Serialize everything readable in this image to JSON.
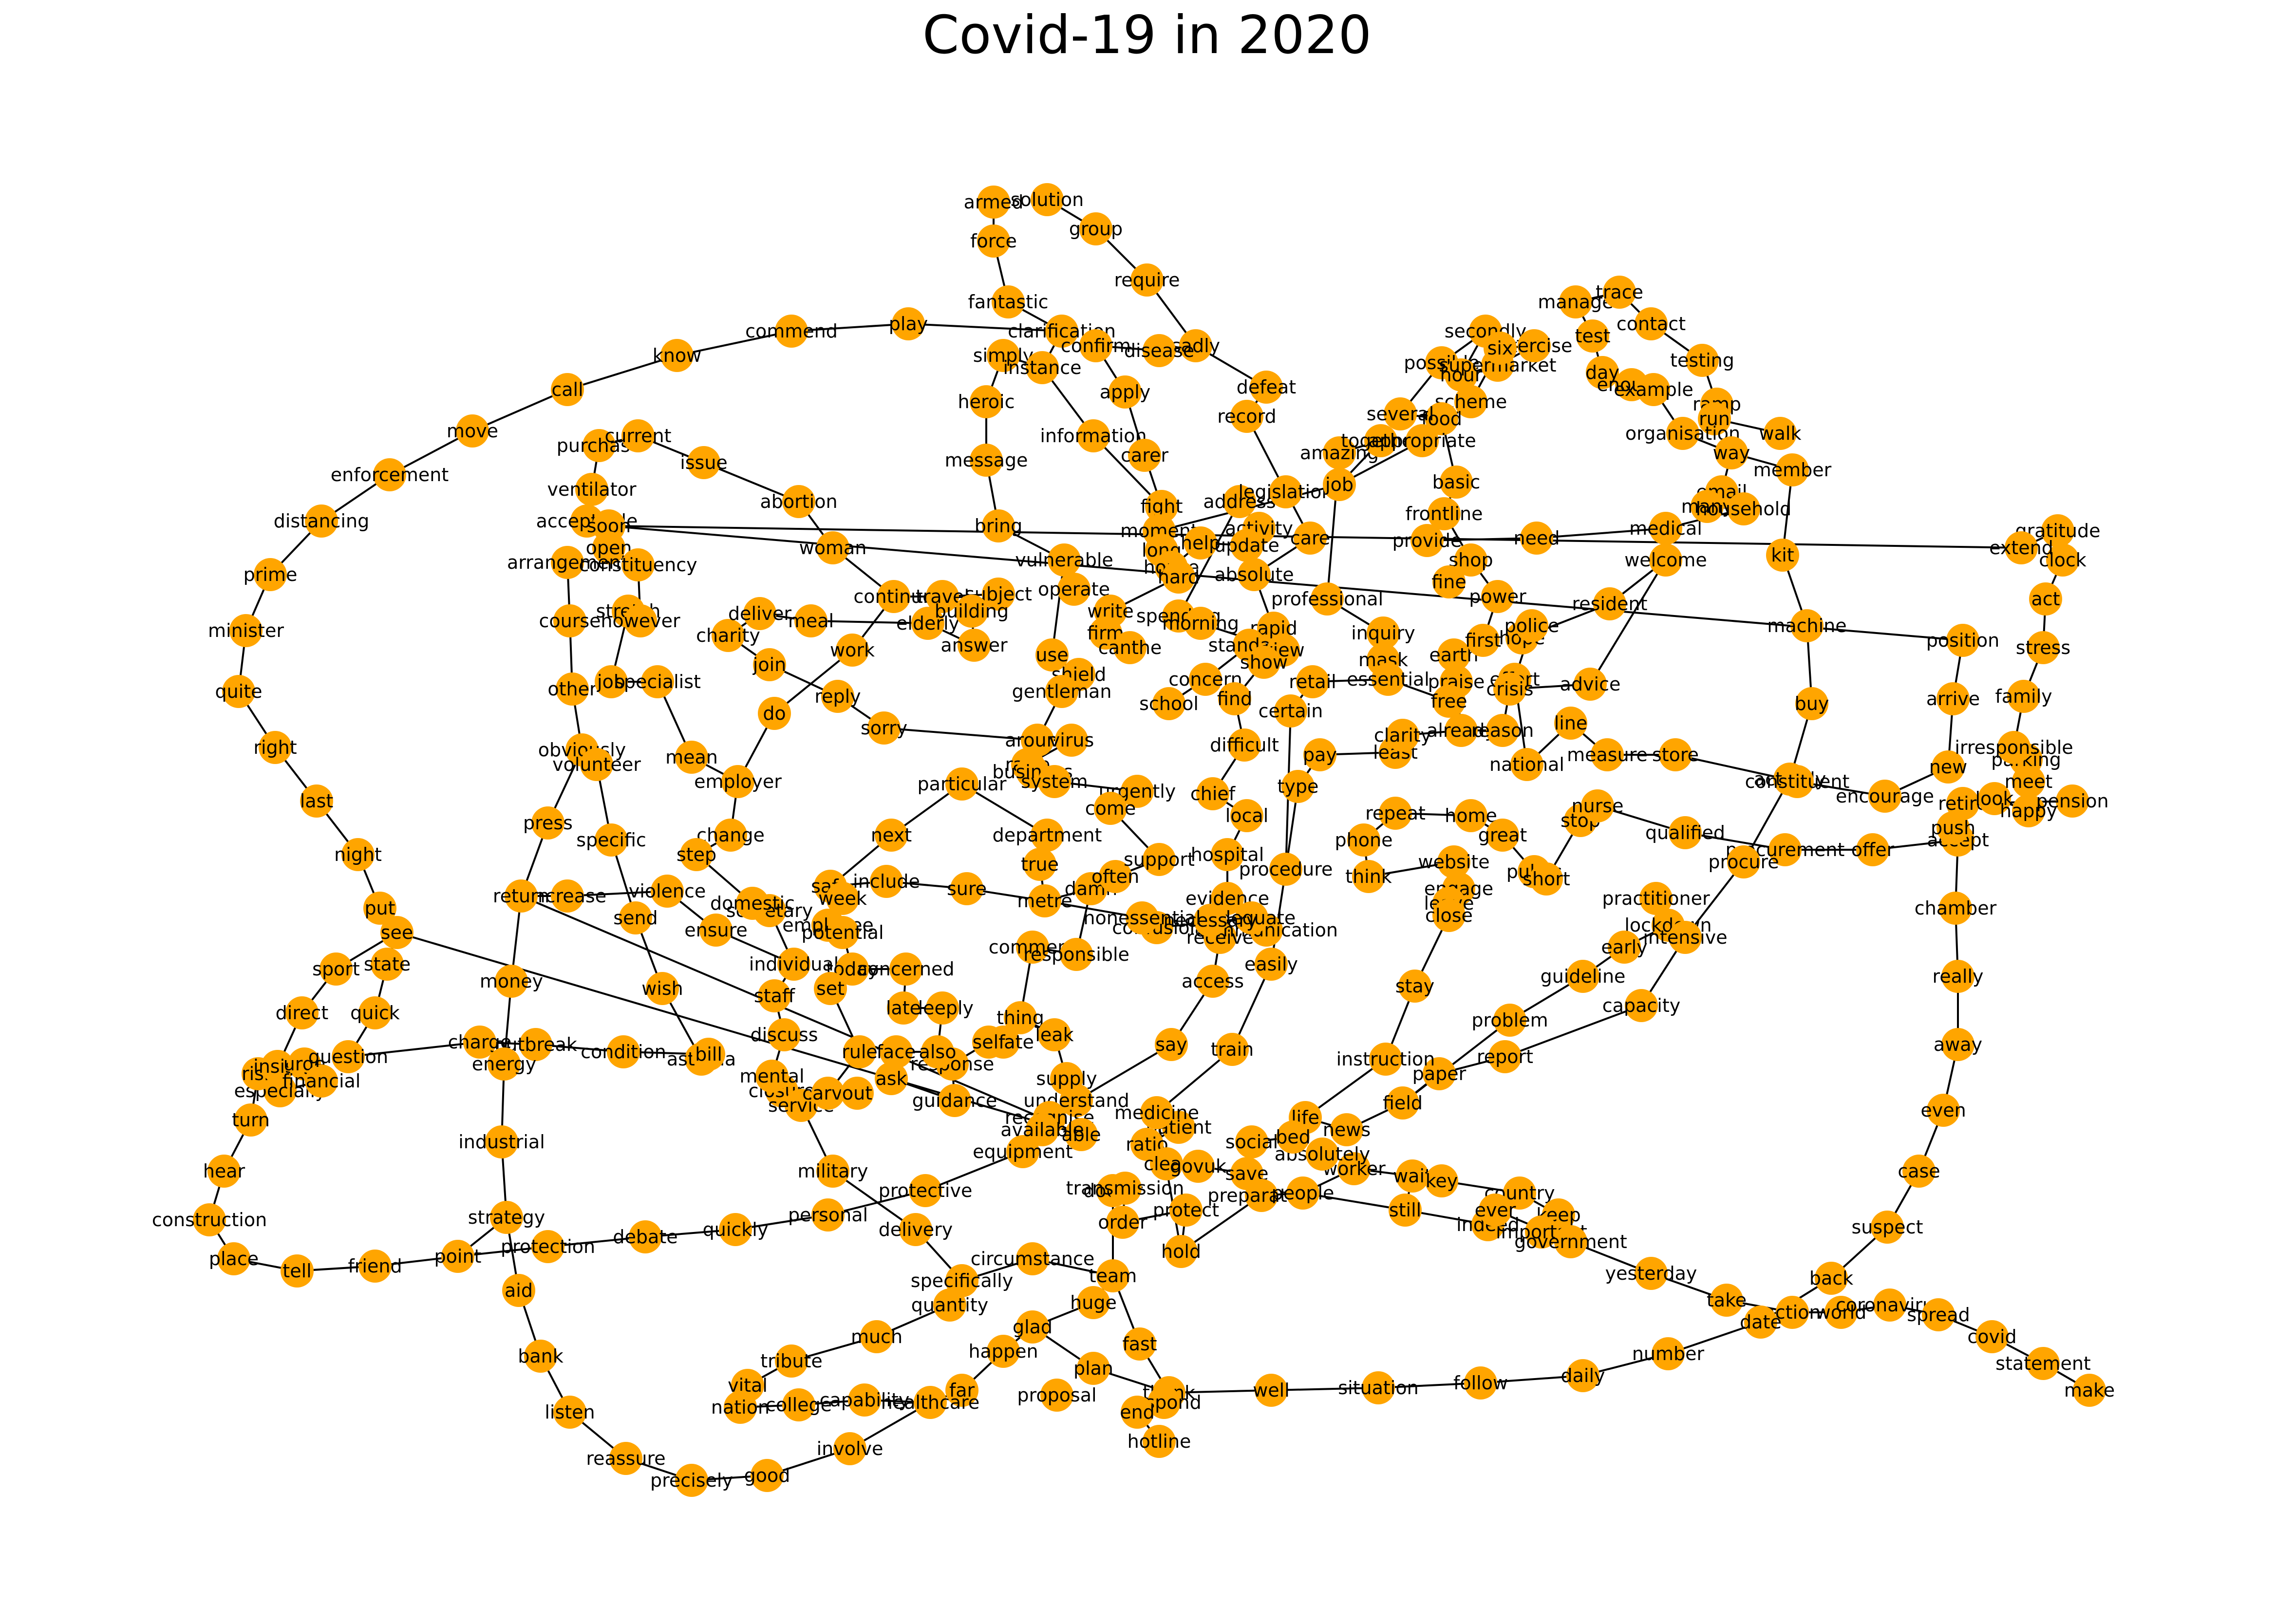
{
  "title": "Covid-19 in 2020",
  "colors": {
    "node": "#ffa500",
    "edge": "#000000",
    "label": "#000000"
  },
  "nodes": [
    "armed",
    "solution",
    "force",
    "group",
    "require",
    "fantastic",
    "clarification",
    "confirm",
    "sadly",
    "simply",
    "instance",
    "disease",
    "apply",
    "defeat",
    "heroic",
    "information",
    "record",
    "carer",
    "message",
    "fight",
    "moment",
    "address",
    "activity",
    "legislation",
    "bring",
    "long",
    "house",
    "help",
    "update",
    "job",
    "care",
    "absolute",
    "vulnerable",
    "operate",
    "hard",
    "write",
    "firm",
    "canthe",
    "spending",
    "morning",
    "professional",
    "rapid",
    "standard",
    "view",
    "show",
    "inquiry",
    "mask",
    "retail",
    "essential",
    "earth",
    "praise",
    "free",
    "concern",
    "school",
    "find",
    "certain",
    "pay",
    "least",
    "clarity",
    "already",
    "reason",
    "difficult",
    "type",
    "chief",
    "local",
    "urgently",
    "come",
    "department",
    "true",
    "metre",
    "damn",
    "often",
    "support",
    "evidence",
    "hospital",
    "procedure",
    "phone",
    "repeat",
    "think",
    "website",
    "engage",
    "leave",
    "close",
    "response",
    "guidance",
    "understand",
    "recognise",
    "supply",
    "equipment",
    "able",
    "vital",
    "order",
    "social",
    "patient",
    "ratio",
    "clear",
    "govuk",
    "save",
    "preparation",
    "people",
    "worker",
    "absolutely",
    "life",
    "bed",
    "news",
    "field",
    "wait",
    "key",
    "country",
    "keep",
    "indeed",
    "important",
    "government",
    "ever",
    "still",
    "yesterday",
    "take",
    "back",
    "action",
    "world",
    "coronavirus",
    "spread",
    "covid",
    "statement",
    "make",
    "date",
    "number",
    "daily",
    "follow",
    "situation",
    "well",
    "thank",
    "respond",
    "end",
    "hotline",
    "proposal",
    "far",
    "healthcare",
    "capability",
    "college",
    "nation",
    "tribute",
    "much",
    "quantity",
    "specifically",
    "circumstance",
    "glad",
    "happen",
    "plan",
    "team",
    "huge",
    "fast",
    "hold",
    "protect",
    "doctor",
    "transmission",
    "medicine",
    "available",
    "delivery",
    "military",
    "personal",
    "protective",
    "quickly",
    "debate",
    "protection",
    "point",
    "friend",
    "tell",
    "place",
    "construction",
    "hear",
    "turn",
    "especially",
    "risk",
    "insist",
    "urge",
    "financial",
    "question",
    "direct",
    "sport",
    "see",
    "state",
    "quick",
    "put",
    "night",
    "last",
    "right",
    "quite",
    "minister",
    "prime",
    "distancing",
    "enforcement",
    "move",
    "call",
    "know",
    "commend",
    "play",
    "purchase",
    "current",
    "issue",
    "abortion",
    "woman",
    "continue",
    "travel",
    "subject",
    "elderly",
    "building",
    "answer",
    "use",
    "shield",
    "gentleman",
    "around",
    "virus",
    "raise",
    "business",
    "system",
    "particular",
    "next",
    "include",
    "sure",
    "safe",
    "week",
    "secretary",
    "domestic",
    "employee",
    "potential",
    "individual",
    "today",
    "concerned",
    "set",
    "staff",
    "discuss",
    "closure",
    "mental",
    "service",
    "carve",
    "out",
    "ask",
    "face",
    "also",
    "deeply",
    "late",
    "rule",
    "isolate",
    "self",
    "thing",
    "leak",
    "say",
    "access",
    "easily",
    "train",
    "receive",
    "communication",
    "adequate",
    "confusion",
    "necessary",
    "nonessential",
    "comment",
    "responsible",
    "ventilator",
    "acceptable",
    "soon",
    "open",
    "arrangement",
    "constituency",
    "stretch",
    "however",
    "course",
    "other",
    "job2",
    "specialist",
    "obviously",
    "volunteer",
    "mean",
    "employer",
    "press",
    "specific",
    "change",
    "step",
    "ensure",
    "violence",
    "increase",
    "send",
    "wish",
    "asthma",
    "bill",
    "condition",
    "outbreak",
    "charge",
    "energy",
    "money",
    "return",
    "industrial",
    "strategy",
    "aid",
    "bank",
    "listen",
    "reassure",
    "precisely",
    "good",
    "involve",
    "sorry",
    "reply",
    "join",
    "do",
    "charity",
    "deliver",
    "meal",
    "work",
    "secondly",
    "possible",
    "hour",
    "supermarket",
    "exercise",
    "six",
    "scheme",
    "food",
    "several",
    "amazing",
    "together",
    "appropriate",
    "basic",
    "frontline",
    "provide",
    "need",
    "medical",
    "shop",
    "fine",
    "power",
    "first",
    "hope",
    "police",
    "effort",
    "advice",
    "crisis",
    "national",
    "line",
    "measure",
    "store",
    "home",
    "great",
    "public",
    "short",
    "stop",
    "nurse",
    "qualified",
    "practitioner",
    "lockdown",
    "intensive",
    "early",
    "guideline",
    "capacity",
    "problem",
    "report",
    "paper",
    "instruction",
    "stay",
    "manage",
    "trace",
    "contact",
    "test",
    "day",
    "enough",
    "testing",
    "example",
    "ramp",
    "run",
    "walk",
    "organisation",
    "way",
    "email",
    "member",
    "many",
    "household",
    "welcome",
    "resident",
    "kit",
    "machine",
    "buy",
    "actively",
    "constituent",
    "encourage",
    "procurement",
    "offer",
    "procure",
    "new",
    "retire",
    "look",
    "happy",
    "meet",
    "parking",
    "irresponsible",
    "pension",
    "accept",
    "push",
    "chamber",
    "really",
    "away",
    "even",
    "case",
    "suspect",
    "arrive",
    "family",
    "stress",
    "act",
    "clock",
    "gratitude",
    "extend",
    "position"
  ]
}
